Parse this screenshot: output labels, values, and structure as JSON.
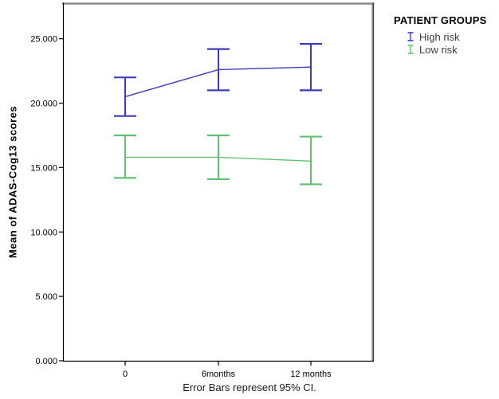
{
  "figure": {
    "background": "#ffffff",
    "frame_top_right_color": "#8c8c8c",
    "axis_color": "#000000"
  },
  "legend": {
    "title": "PATIENT GROUPS",
    "items": [
      {
        "label": "High risk",
        "color": "#3d3dbb"
      },
      {
        "label": "Low risk",
        "color": "#62c072"
      }
    ]
  },
  "chart_data": {
    "type": "line",
    "variant": "means-with-95ci-error-bars",
    "title": "",
    "xlabel": "",
    "ylabel": "Mean of ADAS-Cog13 scores",
    "categories": [
      "0",
      "6months",
      "12 months"
    ],
    "series": [
      {
        "name": "High risk",
        "color": "#3d3dbb",
        "means": [
          20.5,
          22.6,
          22.8
        ],
        "ci_low": [
          19.0,
          21.0,
          21.0
        ],
        "ci_high": [
          22.0,
          24.2,
          24.6
        ]
      },
      {
        "name": "Low risk",
        "color": "#62c072",
        "means": [
          15.8,
          15.8,
          15.5
        ],
        "ci_low": [
          14.2,
          14.1,
          13.7
        ],
        "ci_high": [
          17.5,
          17.5,
          17.4
        ]
      }
    ],
    "ylim": [
      0,
      27.7
    ],
    "yticks": [
      0,
      5,
      10,
      15,
      20,
      25
    ],
    "ytick_labels": [
      "0.000",
      "5.000",
      "10.000",
      "15.000",
      "20.000",
      "25.000"
    ],
    "grid": false,
    "legend_title": "PATIENT GROUPS",
    "legend_position": "top-right",
    "caption": "Error Bars represent 95% CI."
  }
}
